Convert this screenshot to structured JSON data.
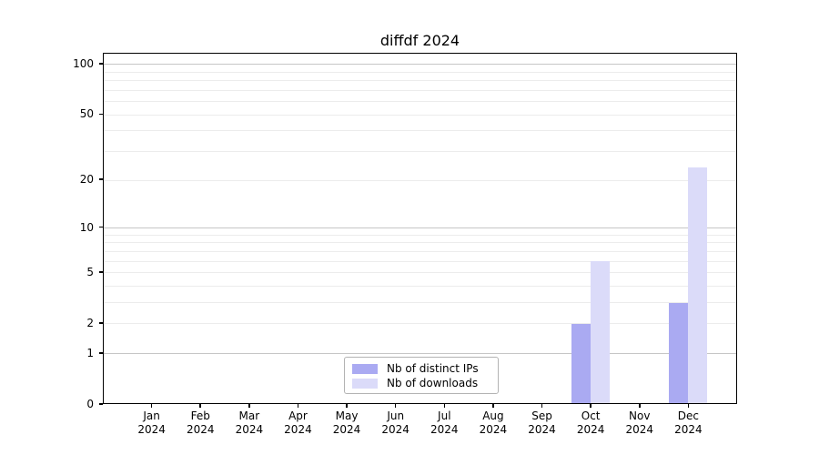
{
  "figure": {
    "background": "#ffffff",
    "spine_color": "#000000",
    "grid_major_color": "#c6c6c6",
    "grid_minor_color": "#ececec",
    "legend_border_color": "#b3b3b3"
  },
  "chart_data": {
    "type": "bar",
    "title": "diffdf 2024",
    "categories": [
      "Jan",
      "Feb",
      "Mar",
      "Apr",
      "May",
      "Jun",
      "Jul",
      "Aug",
      "Sep",
      "Oct",
      "Nov",
      "Dec"
    ],
    "year_label": "2024",
    "series": [
      {
        "name": "Nb of distinct IPs",
        "color": "#aaaaf2",
        "values": [
          0,
          0,
          0,
          0,
          0,
          0,
          0,
          0,
          0,
          2,
          0,
          3
        ]
      },
      {
        "name": "Nb of downloads",
        "color": "#dbdbf9",
        "values": [
          0,
          0,
          0,
          0,
          0,
          0,
          0,
          0,
          0,
          6,
          0,
          24
        ]
      }
    ],
    "y_scale": "log1p",
    "y_ticks": [
      0,
      1,
      2,
      5,
      10,
      20,
      50,
      100
    ],
    "y_major_gridlines": [
      1,
      10,
      100
    ],
    "y_minor_gridlines": [
      2,
      3,
      4,
      5,
      6,
      7,
      8,
      9,
      20,
      30,
      40,
      50,
      60,
      70,
      80,
      90
    ],
    "y_top": 116,
    "ylim": [
      0,
      116
    ],
    "grid": true,
    "legend_position": "lower center",
    "xlabel": "",
    "ylabel": ""
  }
}
